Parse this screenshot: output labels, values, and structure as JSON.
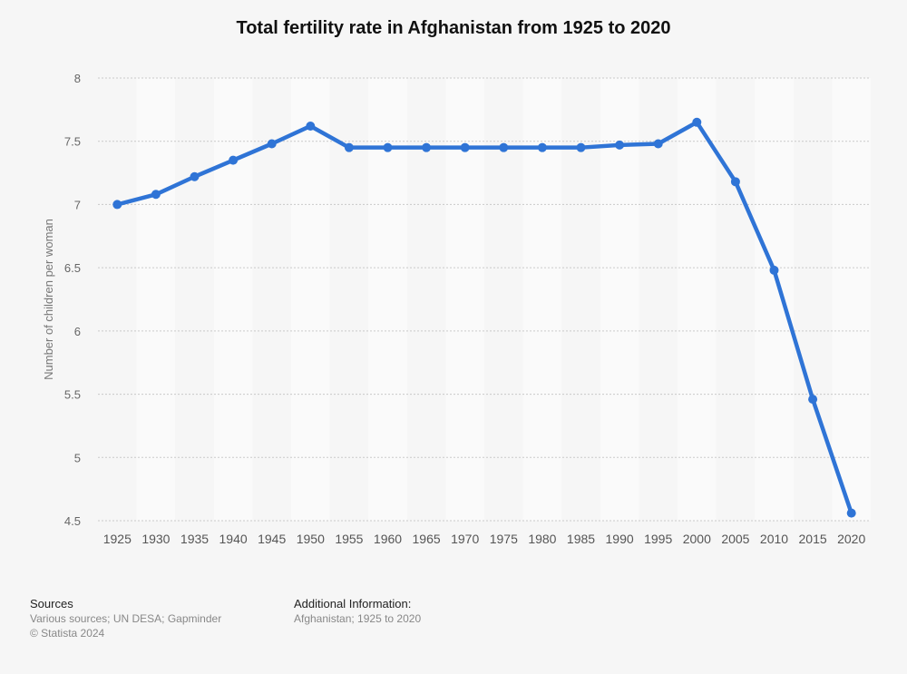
{
  "chart_data": {
    "type": "line",
    "title": "Total fertility rate in Afghanistan from 1925 to 2020",
    "xlabel": "",
    "ylabel": "Number of children per woman",
    "ylim": [
      4.5,
      8
    ],
    "yticks": [
      "4.5",
      "5",
      "5.5",
      "6",
      "6.5",
      "7",
      "7.5",
      "8"
    ],
    "categories": [
      "1925",
      "1930",
      "1935",
      "1940",
      "1945",
      "1950",
      "1955",
      "1960",
      "1965",
      "1970",
      "1975",
      "1980",
      "1985",
      "1990",
      "1995",
      "2000",
      "2005",
      "2010",
      "2015",
      "2020"
    ],
    "series": [
      {
        "name": "Total fertility rate",
        "values": [
          7.0,
          7.08,
          7.22,
          7.35,
          7.48,
          7.62,
          7.45,
          7.45,
          7.45,
          7.45,
          7.45,
          7.45,
          7.45,
          7.47,
          7.48,
          7.65,
          7.18,
          6.48,
          5.46,
          4.56
        ]
      }
    ],
    "colors": {
      "line": "#2f74d6",
      "grid": "#c9c9c9",
      "band": "#fafafa"
    }
  },
  "footer": {
    "sources_label": "Sources",
    "sources_text": "Various sources; UN DESA; Gapminder",
    "copyright": "© Statista 2024",
    "additional_label": "Additional Information:",
    "additional_text": "Afghanistan; 1925 to 2020"
  }
}
